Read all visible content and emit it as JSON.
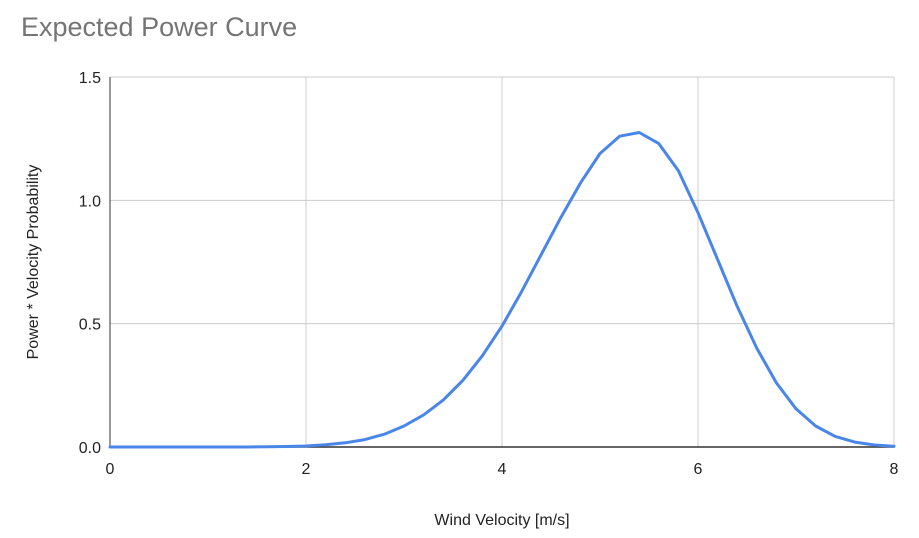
{
  "chart_data": {
    "type": "line",
    "title": "Expected Power Curve",
    "xlabel": "Wind Velocity [m/s]",
    "ylabel": "Power * Velocity Probability",
    "xlim": [
      0,
      8
    ],
    "ylim": [
      0,
      1.5
    ],
    "x_ticks": [
      "0",
      "2",
      "4",
      "6",
      "8"
    ],
    "y_ticks": [
      "0.0",
      "0.5",
      "1.0",
      "1.5"
    ],
    "grid": true,
    "colors": {
      "line": "#4a86e8",
      "grid": "#cccccc",
      "axis": "#333333"
    },
    "series": [
      {
        "x": [
          0,
          0.2,
          0.4,
          0.6,
          0.8,
          1.0,
          1.2,
          1.4,
          1.6,
          1.8,
          2.0,
          2.2,
          2.4,
          2.6,
          2.8,
          3.0,
          3.2,
          3.4,
          3.6,
          3.8,
          4.0,
          4.2,
          4.4,
          4.6,
          4.8,
          5.0,
          5.2,
          5.4,
          5.6,
          5.8,
          6.0,
          6.2,
          6.4,
          6.6,
          6.8,
          7.0,
          7.2,
          7.4,
          7.6,
          7.8,
          8.0
        ],
        "values": [
          0,
          0,
          0,
          0,
          0,
          0,
          0,
          0,
          0.001,
          0.002,
          0.004,
          0.009,
          0.017,
          0.03,
          0.052,
          0.085,
          0.13,
          0.19,
          0.27,
          0.37,
          0.49,
          0.63,
          0.78,
          0.93,
          1.07,
          1.19,
          1.26,
          1.275,
          1.23,
          1.12,
          0.95,
          0.76,
          0.57,
          0.4,
          0.26,
          0.155,
          0.085,
          0.043,
          0.02,
          0.008,
          0.003
        ]
      }
    ]
  }
}
